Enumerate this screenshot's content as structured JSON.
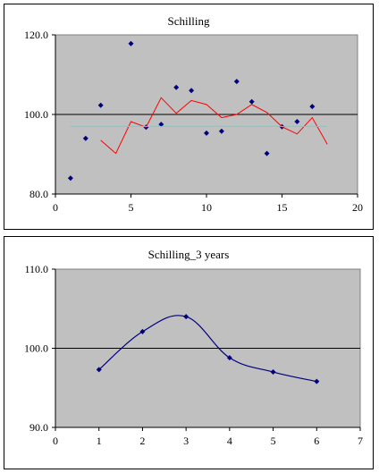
{
  "chart_data": [
    {
      "type": "scatter",
      "title": "Schilling",
      "xlim": [
        0,
        20
      ],
      "ylim": [
        80,
        120
      ],
      "xticks": [
        0,
        5,
        10,
        15,
        20
      ],
      "yticks": [
        80.0,
        100.0,
        120.0
      ],
      "ytick_labels": [
        "80.0",
        "100.0",
        "120.0"
      ],
      "plot_bg": "#c0c0c0",
      "reference_line_y": 100,
      "series": [
        {
          "kind": "points",
          "color": "#00007f",
          "x": [
            1,
            2,
            3,
            5,
            6,
            7,
            8,
            9,
            10,
            11,
            12,
            13,
            14,
            15,
            16,
            17
          ],
          "y": [
            84.0,
            94.0,
            102.3,
            117.8,
            96.8,
            97.5,
            106.8,
            106.0,
            95.3,
            95.8,
            108.3,
            103.2,
            90.2,
            96.9,
            98.2,
            102.0
          ]
        },
        {
          "kind": "line",
          "color": "#ff0000",
          "x": [
            3,
            4,
            5,
            6,
            7,
            8,
            9,
            10,
            11,
            12,
            13,
            14,
            15,
            16,
            17,
            18
          ],
          "y": [
            93.5,
            90.2,
            98.2,
            96.8,
            104.2,
            100.3,
            103.5,
            102.5,
            99.2,
            100.0,
            102.5,
            100.5,
            96.9,
            95.1,
            99.2,
            92.5
          ]
        },
        {
          "kind": "line",
          "color": "#00ffff",
          "x": [
            1,
            18
          ],
          "y": [
            97.0,
            97.0
          ]
        }
      ]
    },
    {
      "type": "line",
      "title": "Schilling_3 years",
      "xlim": [
        0,
        7
      ],
      "ylim": [
        90,
        110
      ],
      "xticks": [
        0,
        1,
        2,
        3,
        4,
        5,
        6,
        7
      ],
      "yticks": [
        90.0,
        100.0,
        110.0
      ],
      "ytick_labels": [
        "90.0",
        "100.0",
        "110.0"
      ],
      "plot_bg": "#c0c0c0",
      "reference_line_y": 100,
      "series": [
        {
          "kind": "smooth-line-points",
          "color": "#00007f",
          "x": [
            1,
            2,
            3,
            4,
            5,
            6
          ],
          "y": [
            97.3,
            102.1,
            104.0,
            98.8,
            97.0,
            95.8
          ]
        }
      ]
    }
  ]
}
